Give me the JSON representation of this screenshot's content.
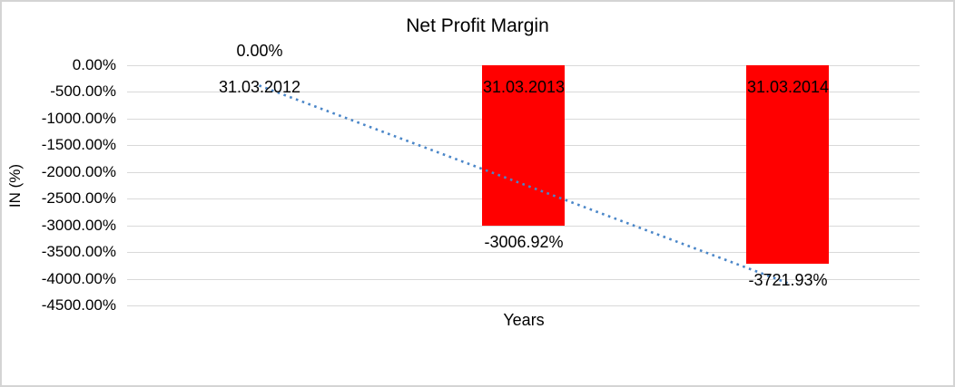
{
  "chart_data": {
    "type": "bar",
    "title": "Net Profit Margin",
    "xlabel": "Years",
    "ylabel": "IN (%)",
    "categories": [
      "31.03.2012",
      "31.03.2013",
      "31.03.2014"
    ],
    "values": [
      0,
      -3006.92,
      -3721.93
    ],
    "data_labels": [
      "0.00%",
      "-3006.92%",
      "-3721.93%"
    ],
    "ylim": [
      -4500,
      0
    ],
    "ytick_step": -500,
    "ytick_labels": [
      "0.00%",
      "-500.00%",
      "-1000.00%",
      "-1500.00%",
      "-2000.00%",
      "-2500.00%",
      "-3000.00%",
      "-3500.00%",
      "-4000.00%",
      "-4500.00%"
    ],
    "grid": true,
    "legend": "none",
    "bar_color": "#ff0000",
    "gridline_color": "#d9d9d9",
    "text_color": "#000000",
    "chart_border_color": "#d4d4d4",
    "background": "#ffffff",
    "trendline": {
      "type": "linear",
      "style": "dotted",
      "color": "#4a86c8",
      "start_value_pct": -380,
      "end_value_pct": -4080
    }
  }
}
